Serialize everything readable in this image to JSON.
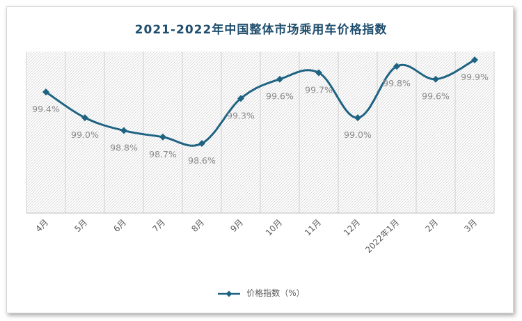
{
  "chart_data": {
    "type": "line",
    "title": "2021-2022年中国整体市场乘用车价格指数",
    "categories": [
      "4月",
      "5月",
      "6月",
      "7月",
      "8月",
      "9月",
      "10月",
      "11月",
      "12月",
      "2022年1月",
      "2月",
      "3月"
    ],
    "series": [
      {
        "name": "价格指数（%）",
        "values": [
          99.4,
          99.0,
          98.8,
          98.7,
          98.6,
          99.3,
          99.6,
          99.7,
          99.0,
          99.8,
          99.6,
          99.9
        ],
        "labels": [
          "99.4%",
          "99.0%",
          "98.8%",
          "98.7%",
          "98.6%",
          "99.3%",
          "99.6%",
          "99.7%",
          "99.0%",
          "99.8%",
          "99.6%",
          "99.9%"
        ],
        "color": "#1f6383"
      }
    ],
    "ylim": [
      97.5,
      99.9
    ],
    "grid": "vertical",
    "plot_background": "hatched",
    "legend_position": "bottom",
    "smooth": true,
    "marker": "diamond"
  }
}
